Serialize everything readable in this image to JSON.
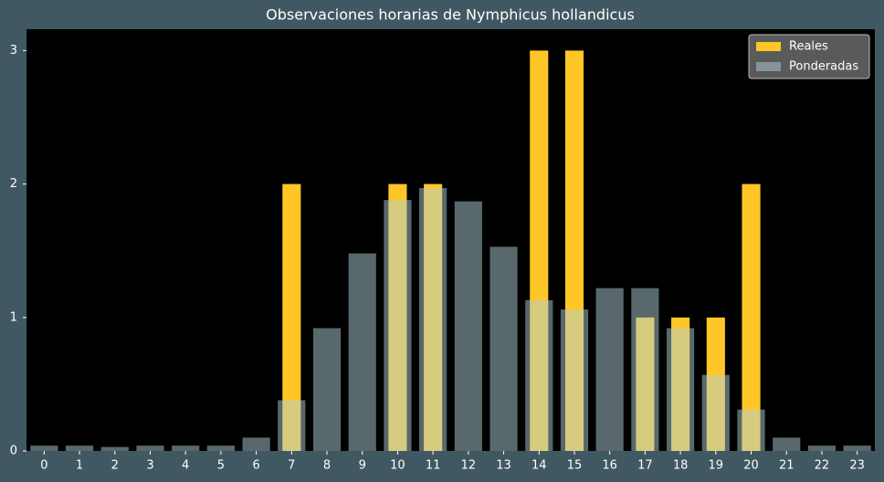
{
  "chart_data": {
    "type": "bar",
    "title": "Observaciones horarias de Nymphicus hollandicus",
    "categories": [
      "0",
      "1",
      "2",
      "3",
      "4",
      "5",
      "6",
      "7",
      "8",
      "9",
      "10",
      "11",
      "12",
      "13",
      "14",
      "15",
      "16",
      "17",
      "18",
      "19",
      "20",
      "21",
      "22",
      "23"
    ],
    "series": [
      {
        "name": "Reales",
        "color": "#ffc627",
        "alpha": 1,
        "values": [
          0,
          0,
          0,
          0,
          0,
          0,
          0,
          2,
          0,
          0,
          2,
          2,
          0,
          0,
          3,
          3,
          0,
          1,
          1,
          1,
          2,
          0,
          0,
          0
        ]
      },
      {
        "name": "Ponderadas",
        "color": "#b0d0d8",
        "alpha": 0.5,
        "values": [
          0.04,
          0.04,
          0.03,
          0.04,
          0.04,
          0.04,
          0.1,
          0.38,
          0.92,
          1.48,
          1.88,
          1.97,
          1.87,
          1.53,
          1.13,
          1.06,
          1.22,
          1.22,
          0.92,
          0.57,
          0.31,
          0.1,
          0.04,
          0.04
        ]
      }
    ],
    "ylim": [
      0,
      3.16
    ],
    "yticks": [
      0,
      1,
      2,
      3
    ],
    "grid": false,
    "legend": "upper right"
  }
}
